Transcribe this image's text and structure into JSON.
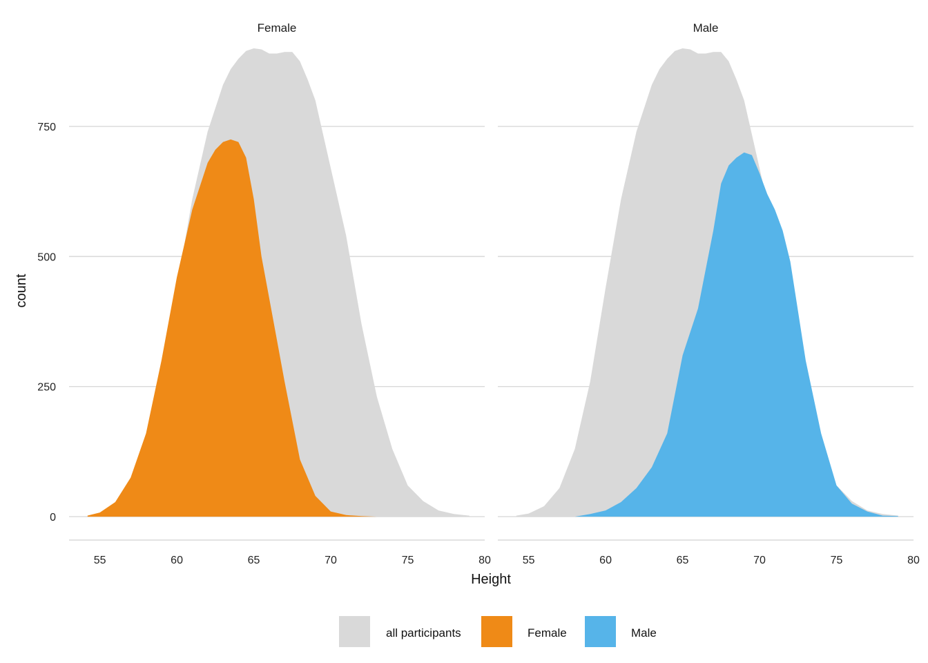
{
  "chart_data": {
    "type": "area",
    "facets": [
      "Female",
      "Male"
    ],
    "xlabel": "Height",
    "ylabel": "count",
    "xlim": [
      53,
      80
    ],
    "ylim": [
      -45,
      900
    ],
    "x_ticks": [
      55,
      60,
      65,
      70,
      75,
      80
    ],
    "y_ticks": [
      0,
      250,
      500,
      750
    ],
    "grid": "horizontal",
    "legend": {
      "position": "bottom",
      "items": [
        {
          "label": "all participants",
          "color": "#d9d9d9"
        },
        {
          "label": "Female",
          "color": "#ef8a17"
        },
        {
          "label": "Male",
          "color": "#56b4e9"
        }
      ]
    },
    "series": [
      {
        "name": "all participants",
        "color": "#d9d9d9",
        "facets": [
          "Female",
          "Male"
        ],
        "x": [
          54.2,
          55.0,
          56.0,
          57.0,
          58.0,
          59.0,
          60.0,
          61.0,
          62.0,
          63.0,
          63.5,
          64.0,
          64.5,
          65.0,
          65.5,
          66.0,
          66.5,
          67.0,
          67.5,
          68.0,
          68.5,
          69.0,
          70.0,
          71.0,
          72.0,
          73.0,
          74.0,
          75.0,
          76.0,
          77.0,
          78.0,
          79.0
        ],
        "y": [
          2,
          6,
          20,
          55,
          130,
          260,
          440,
          610,
          740,
          830,
          860,
          880,
          895,
          900,
          898,
          890,
          890,
          893,
          893,
          875,
          840,
          800,
          670,
          540,
          370,
          230,
          130,
          60,
          30,
          12,
          5,
          2
        ]
      },
      {
        "name": "Female",
        "color": "#ef8a17",
        "facet": "Female",
        "x": [
          54.2,
          55.0,
          56.0,
          57.0,
          58.0,
          59.0,
          60.0,
          61.0,
          62.0,
          62.5,
          63.0,
          63.5,
          64.0,
          64.5,
          65.0,
          65.5,
          66.0,
          67.0,
          68.0,
          69.0,
          70.0,
          71.0,
          72.0,
          73.0,
          74.0,
          75.0,
          76.0,
          77.0,
          78.0,
          79.0
        ],
        "y": [
          2,
          8,
          28,
          75,
          160,
          300,
          460,
          590,
          680,
          705,
          720,
          725,
          720,
          690,
          610,
          500,
          420,
          260,
          110,
          40,
          10,
          3,
          1,
          0,
          0,
          0,
          0,
          0,
          0,
          0
        ]
      },
      {
        "name": "Male",
        "color": "#56b4e9",
        "facet": "Male",
        "x": [
          54.2,
          55.0,
          56.0,
          57.0,
          58.0,
          59.0,
          60.0,
          61.0,
          62.0,
          63.0,
          64.0,
          65.0,
          66.0,
          67.0,
          67.5,
          68.0,
          68.5,
          69.0,
          69.5,
          70.0,
          70.5,
          71.0,
          71.5,
          72.0,
          73.0,
          74.0,
          75.0,
          76.0,
          77.0,
          78.0,
          79.0
        ],
        "y": [
          0,
          0,
          0,
          0,
          0,
          5,
          12,
          28,
          55,
          95,
          160,
          310,
          400,
          550,
          640,
          675,
          690,
          700,
          695,
          660,
          620,
          590,
          550,
          490,
          300,
          160,
          60,
          25,
          10,
          2,
          1
        ]
      }
    ]
  }
}
